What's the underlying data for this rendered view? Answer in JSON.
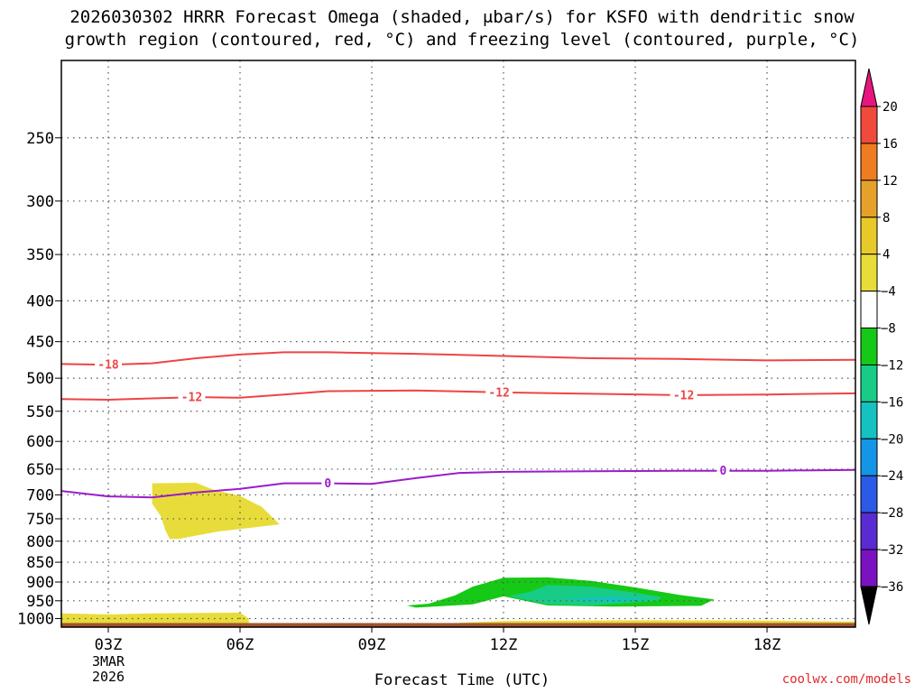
{
  "title_line1": "2026030302 HRRR Forecast Omega (shaded, μbar/s) for KSFO with dendritic snow",
  "title_line2": "growth region (contoured, red, °C) and freezing level (contoured, purple, °C)",
  "xlabel": "Forecast Time (UTC)",
  "credit": "coolwx.com/models",
  "chart_data": {
    "type": "heatmap",
    "y_axis": {
      "scale": "log-pressure",
      "unit": "hPa",
      "reversed": true,
      "range": [
        1025,
        200
      ],
      "ticks": [
        250,
        300,
        350,
        400,
        450,
        500,
        550,
        600,
        650,
        700,
        750,
        800,
        850,
        900,
        950,
        1000
      ]
    },
    "x_axis": {
      "unit": "hour UTC",
      "range": [
        1.9,
        20.3
      ],
      "ticks": [
        {
          "hour": 3,
          "label": "03Z",
          "sub1": "3MAR",
          "sub2": "2026"
        },
        {
          "hour": 6,
          "label": "06Z"
        },
        {
          "hour": 9,
          "label": "09Z"
        },
        {
          "hour": 12,
          "label": "12Z"
        },
        {
          "hour": 15,
          "label": "15Z"
        },
        {
          "hour": 18,
          "label": "18Z"
        }
      ]
    },
    "grid": true,
    "colorbar": {
      "position": "right",
      "labels": [
        20,
        16,
        12,
        8,
        4,
        -4,
        -8,
        -12,
        -16,
        -20,
        -24,
        -28,
        -32,
        -36
      ],
      "colors": [
        "#e8157f",
        "#ef4a3c",
        "#ee7d22",
        "#e6a12a",
        "#e8c92a",
        "#e8dd38",
        "#ffffff",
        "#16c916",
        "#18cc88",
        "#14c2c2",
        "#1496e6",
        "#2a5ae6",
        "#5a2ad2",
        "#7a12c2",
        "#a012c2",
        "#a8a8a8",
        "#000000"
      ]
    },
    "contours": [
      {
        "value": -18,
        "label": "-18",
        "color": "#ee4444",
        "points": [
          [
            1.9,
            480
          ],
          [
            3.0,
            481
          ],
          [
            4.0,
            479
          ],
          [
            5.0,
            472
          ],
          [
            6.0,
            467
          ],
          [
            7.0,
            464
          ],
          [
            8.0,
            464
          ],
          [
            10.0,
            466
          ],
          [
            12.0,
            469
          ],
          [
            14.0,
            472
          ],
          [
            16.0,
            473
          ],
          [
            18.0,
            475
          ],
          [
            20.3,
            474
          ]
        ],
        "labels_at": [
          3.0
        ]
      },
      {
        "value": -12,
        "label": "-12",
        "color": "#ee4444",
        "points": [
          [
            1.9,
            531
          ],
          [
            3.0,
            532
          ],
          [
            4.0,
            530
          ],
          [
            5.0,
            528
          ],
          [
            6.0,
            529
          ],
          [
            7.0,
            524
          ],
          [
            8.0,
            519
          ],
          [
            10.0,
            518
          ],
          [
            12.0,
            521
          ],
          [
            14.0,
            523
          ],
          [
            16.0,
            525
          ],
          [
            18.0,
            524
          ],
          [
            20.3,
            522
          ]
        ],
        "labels_at": [
          4.9,
          11.9,
          16.1
        ]
      },
      {
        "value": 0,
        "label": "0",
        "color": "#9b1cc8",
        "points": [
          [
            1.9,
            692
          ],
          [
            3.0,
            703
          ],
          [
            4.0,
            705
          ],
          [
            5.0,
            695
          ],
          [
            6.0,
            688
          ],
          [
            7.0,
            677
          ],
          [
            8.0,
            677
          ],
          [
            9.0,
            678
          ],
          [
            10.0,
            667
          ],
          [
            11.0,
            657
          ],
          [
            12.0,
            655
          ],
          [
            14.0,
            654
          ],
          [
            16.0,
            653
          ],
          [
            18.0,
            653
          ],
          [
            20.3,
            651
          ]
        ],
        "labels_at": [
          8.0,
          17.0
        ]
      }
    ],
    "shaded_regions": [
      {
        "omega": 6,
        "color": "#e8dc3a",
        "points": [
          [
            4.0,
            677
          ],
          [
            5.0,
            676
          ],
          [
            5.4,
            690
          ],
          [
            6.0,
            702
          ],
          [
            6.5,
            725
          ],
          [
            6.9,
            762
          ],
          [
            5.5,
            778
          ],
          [
            4.6,
            795
          ],
          [
            4.4,
            795
          ],
          [
            4.3,
            775
          ],
          [
            4.2,
            745
          ],
          [
            4.0,
            718
          ]
        ]
      },
      {
        "omega": 6,
        "color": "#e8dc3a",
        "points": [
          [
            1.9,
            985
          ],
          [
            3.0,
            988
          ],
          [
            4.0,
            985
          ],
          [
            6.0,
            983
          ],
          [
            6.2,
            1000
          ],
          [
            6.2,
            1013
          ],
          [
            1.9,
            1013
          ]
        ]
      },
      {
        "omega": 6,
        "color": "#e8dc3a",
        "points": [
          [
            11.0,
            1012
          ],
          [
            12.0,
            1007
          ],
          [
            15.0,
            1005
          ],
          [
            18.0,
            1006
          ],
          [
            20.3,
            1009
          ],
          [
            20.3,
            1013
          ],
          [
            11.0,
            1013
          ]
        ]
      },
      {
        "omega": -6,
        "color": "#16c916",
        "points": [
          [
            9.8,
            963
          ],
          [
            10.3,
            958
          ],
          [
            10.9,
            935
          ],
          [
            11.3,
            912
          ],
          [
            12.0,
            889
          ],
          [
            13.0,
            888
          ],
          [
            14.0,
            897
          ],
          [
            15.0,
            914
          ],
          [
            16.0,
            934
          ],
          [
            16.8,
            946
          ],
          [
            16.5,
            964
          ],
          [
            14.5,
            966
          ],
          [
            13.0,
            963
          ],
          [
            12.0,
            938
          ],
          [
            11.3,
            960
          ],
          [
            10.0,
            969
          ]
        ]
      },
      {
        "omega": -10,
        "color": "#18cc88",
        "points": [
          [
            12.1,
            937
          ],
          [
            12.6,
            926
          ],
          [
            13.0,
            908
          ],
          [
            14.0,
            912
          ],
          [
            15.0,
            928
          ],
          [
            15.6,
            940
          ],
          [
            15.5,
            950
          ],
          [
            14.0,
            963
          ],
          [
            13.0,
            960
          ]
        ]
      },
      {
        "omega": -14,
        "color": "#14c2c2",
        "points": [
          [
            13.3,
            944
          ],
          [
            14.5,
            939
          ],
          [
            15.3,
            945
          ],
          [
            14.5,
            953
          ]
        ]
      }
    ],
    "terrain": {
      "color": "#a0522d",
      "top_hpa": 1013
    }
  }
}
